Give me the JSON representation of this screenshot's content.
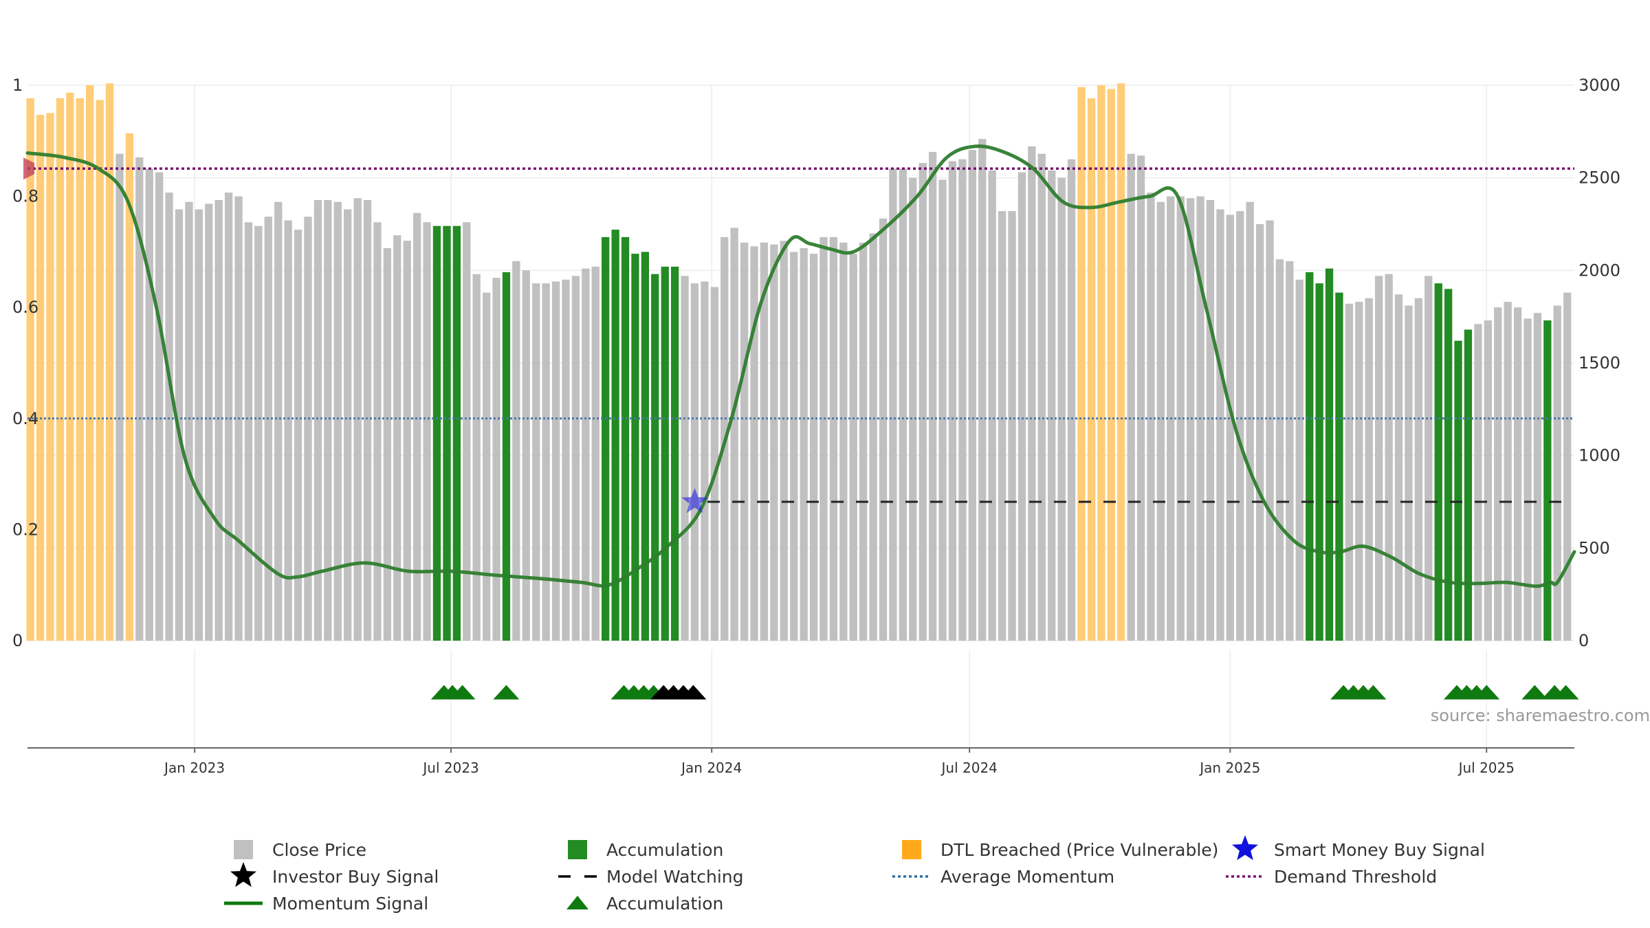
{
  "chart_data": {
    "type": "bar",
    "title": "",
    "source_label": "source: sharemaestro.com",
    "left_axis": {
      "ylim": [
        0,
        1
      ],
      "ticks": [
        0,
        0.2,
        0.4,
        0.6,
        0.8,
        1
      ],
      "tick_labels": [
        "0",
        "0.2",
        "0.4",
        "0.6",
        "0.8",
        "1"
      ]
    },
    "right_axis": {
      "ylim": [
        0,
        3000
      ],
      "ticks": [
        0,
        500,
        1000,
        1500,
        2000,
        2500,
        3000
      ],
      "tick_labels": [
        "0",
        "500",
        "1000",
        "1500",
        "2000",
        "2500",
        "3000"
      ]
    },
    "x_axis": {
      "range": [
        "2022-09-05",
        "2025-09-01"
      ],
      "ticks": [
        "2023-01-01",
        "2023-07-01",
        "2024-01-01",
        "2024-07-01",
        "2025-01-01",
        "2025-07-01"
      ],
      "tick_labels": [
        "Jan 2023",
        "Jul 2023",
        "Jan 2024",
        "Jul 2024",
        "Jan 2025",
        "Jul 2025"
      ]
    },
    "grid": true,
    "colors": {
      "close": "#c0c0c0",
      "accumulation": "#238b23",
      "dtl": "#ffcc77",
      "momentum": "#2e7d2e",
      "average": "#4a78a8",
      "demand": "#7a1070",
      "watching": "#222222",
      "smart_money": "#2222dd",
      "investor": "#000000",
      "triangle": "#0f7a0f"
    },
    "bars": {
      "start": "2022-09-07",
      "step_days": 7,
      "close": [
        2930,
        2840,
        2850,
        2930,
        2960,
        2930,
        3000,
        2920,
        3010,
        2630,
        2740,
        2610,
        2550,
        2530,
        2420,
        2330,
        2370,
        2330,
        2360,
        2380,
        2420,
        2400,
        2260,
        2240,
        2290,
        2370,
        2270,
        2220,
        2290,
        2380,
        2380,
        2370,
        2330,
        2390,
        2380,
        2260,
        2120,
        2190,
        2160,
        2310,
        2260,
        2240,
        2240,
        2240,
        2260,
        1980,
        1880,
        1960,
        1990,
        2050,
        2000,
        1930,
        1930,
        1940,
        1950,
        1970,
        2010,
        2020,
        2180,
        2220,
        2180,
        2090,
        2100,
        1980,
        2020,
        2020,
        1970,
        1930,
        1940,
        1910,
        2180,
        2230,
        2150,
        2130,
        2150,
        2140,
        2160,
        2100,
        2120,
        2090,
        2180,
        2180,
        2150,
        2090,
        2150,
        2200,
        2280,
        2550,
        2550,
        2500,
        2580,
        2640,
        2490,
        2590,
        2600,
        2650,
        2710,
        2540,
        2320,
        2320,
        2530,
        2670,
        2630,
        2540,
        2500,
        2600,
        2990,
        2930,
        3000,
        2980,
        3010,
        2630,
        2620,
        2420,
        2370,
        2400,
        2400,
        2390,
        2400,
        2380,
        2330,
        2300,
        2320,
        2370,
        2250,
        2270,
        2060,
        2050,
        1950,
        1990,
        1930,
        2010,
        1880,
        1820,
        1830,
        1850,
        1970,
        1980,
        1870,
        1810,
        1850,
        1970,
        1930,
        1900,
        1620,
        1680,
        1710,
        1730,
        1800,
        1830,
        1800,
        1740,
        1770,
        1730,
        1810,
        1880
      ],
      "type": [
        "dtl",
        "dtl",
        "dtl",
        "dtl",
        "dtl",
        "dtl",
        "dtl",
        "dtl",
        "dtl",
        "close",
        "dtl",
        "close",
        "close",
        "close",
        "close",
        "close",
        "close",
        "close",
        "close",
        "close",
        "close",
        "close",
        "close",
        "close",
        "close",
        "close",
        "close",
        "close",
        "close",
        "close",
        "close",
        "close",
        "close",
        "close",
        "close",
        "close",
        "close",
        "close",
        "close",
        "close",
        "close",
        "acc",
        "acc",
        "acc",
        "close",
        "close",
        "close",
        "close",
        "acc",
        "close",
        "close",
        "close",
        "close",
        "close",
        "close",
        "close",
        "close",
        "close",
        "acc",
        "acc",
        "acc",
        "acc",
        "acc",
        "acc",
        "acc",
        "acc",
        "close",
        "close",
        "close",
        "close",
        "close",
        "close",
        "close",
        "close",
        "close",
        "close",
        "close",
        "close",
        "close",
        "close",
        "close",
        "close",
        "close",
        "close",
        "close",
        "close",
        "close",
        "close",
        "close",
        "close",
        "close",
        "close",
        "close",
        "close",
        "close",
        "close",
        "close",
        "close",
        "close",
        "close",
        "close",
        "close",
        "close",
        "close",
        "close",
        "close",
        "dtl",
        "dtl",
        "dtl",
        "dtl",
        "dtl",
        "close",
        "close",
        "close",
        "close",
        "close",
        "close",
        "close",
        "close",
        "close",
        "close",
        "close",
        "close",
        "close",
        "close",
        "close",
        "close",
        "close",
        "close",
        "acc",
        "acc",
        "acc",
        "acc",
        "close",
        "close",
        "close",
        "close",
        "close",
        "close",
        "close",
        "close",
        "close",
        "acc",
        "acc",
        "acc",
        "acc",
        "close",
        "close",
        "close",
        "close",
        "close",
        "close",
        "close",
        "acc",
        "close",
        "close",
        "acc",
        "acc"
      ]
    },
    "series": [
      {
        "name": "Momentum Signal",
        "x": [
          "2022-09-05",
          "2022-10-01",
          "2022-10-25",
          "2022-11-15",
          "2022-12-05",
          "2022-12-25",
          "2023-01-15",
          "2023-02-01",
          "2023-03-01",
          "2023-03-15",
          "2023-04-01",
          "2023-05-01",
          "2023-06-01",
          "2023-07-01",
          "2023-08-01",
          "2023-09-01",
          "2023-10-01",
          "2023-10-20",
          "2023-11-10",
          "2023-12-01",
          "2023-12-25",
          "2024-01-15",
          "2024-02-05",
          "2024-02-25",
          "2024-03-10",
          "2024-03-25",
          "2024-04-10",
          "2024-05-01",
          "2024-05-25",
          "2024-06-15",
          "2024-07-05",
          "2024-07-25",
          "2024-08-15",
          "2024-09-05",
          "2024-09-25",
          "2024-10-15",
          "2024-11-05",
          "2024-11-25",
          "2024-12-15",
          "2025-01-05",
          "2025-01-25",
          "2025-02-15",
          "2025-03-05",
          "2025-03-20",
          "2025-04-05",
          "2025-04-25",
          "2025-05-15",
          "2025-06-05",
          "2025-06-25",
          "2025-07-15",
          "2025-08-05",
          "2025-08-15",
          "2025-08-20",
          "2025-09-01"
        ],
        "y": [
          0.878,
          0.87,
          0.85,
          0.79,
          0.6,
          0.33,
          0.22,
          0.18,
          0.12,
          0.115,
          0.125,
          0.14,
          0.125,
          0.125,
          0.118,
          0.112,
          0.105,
          0.1,
          0.13,
          0.17,
          0.24,
          0.4,
          0.61,
          0.72,
          0.715,
          0.705,
          0.7,
          0.74,
          0.8,
          0.87,
          0.89,
          0.88,
          0.85,
          0.79,
          0.78,
          0.79,
          0.8,
          0.8,
          0.6,
          0.38,
          0.25,
          0.18,
          0.16,
          0.16,
          0.17,
          0.15,
          0.12,
          0.105,
          0.103,
          0.105,
          0.098,
          0.105,
          0.105,
          0.16
        ]
      },
      {
        "name": "Average Momentum",
        "y_const": 0.4
      },
      {
        "name": "Demand Threshold",
        "y_const": 0.85
      },
      {
        "name": "Model Watching",
        "y_const": 0.25,
        "x_range": [
          "2023-12-29",
          "2025-08-24"
        ]
      },
      {
        "name": "Smart Money Buy Signal",
        "x": [
          "2023-12-20"
        ],
        "y": [
          0.25
        ]
      },
      {
        "name": "Start Marker",
        "x": [
          "2022-09-06"
        ],
        "y": [
          0.85
        ]
      }
    ],
    "triangles": {
      "accumulation": [
        "2023-06-26",
        "2023-07-02",
        "2023-07-09",
        "2023-08-09",
        "2023-10-31",
        "2023-11-07",
        "2023-11-14",
        "2023-11-21",
        "2025-03-22",
        "2025-03-29",
        "2025-04-05",
        "2025-04-12",
        "2025-06-10",
        "2025-06-17",
        "2025-06-24",
        "2025-07-01",
        "2025-08-04",
        "2025-08-18",
        "2025-08-26"
      ],
      "investor": [
        "2023-11-28",
        "2023-12-05",
        "2023-12-12",
        "2023-12-19"
      ]
    },
    "legend": {
      "placement": "bottom",
      "items": [
        {
          "label": "Close Price",
          "marker": "square",
          "color": "#c0c0c0"
        },
        {
          "label": "Accumulation",
          "marker": "square",
          "color": "#238b23"
        },
        {
          "label": "DTL Breached (Price Vulnerable)",
          "marker": "square",
          "color": "#ffa91a"
        },
        {
          "label": "Smart Money Buy Signal",
          "marker": "star",
          "color": "#1111dd"
        },
        {
          "label": "Investor Buy Signal",
          "marker": "star",
          "color": "#000000"
        },
        {
          "label": "Model Watching",
          "marker": "dash",
          "color": "#000000"
        },
        {
          "label": "Average Momentum",
          "marker": "dot",
          "color": "#2e6fa0"
        },
        {
          "label": "Demand Threshold",
          "marker": "dot",
          "color": "#7a1070"
        },
        {
          "label": "Momentum Signal",
          "marker": "line",
          "color": "#0f7a0f"
        },
        {
          "label": "Accumulation",
          "marker": "triangle",
          "color": "#0f7a0f"
        }
      ]
    }
  }
}
